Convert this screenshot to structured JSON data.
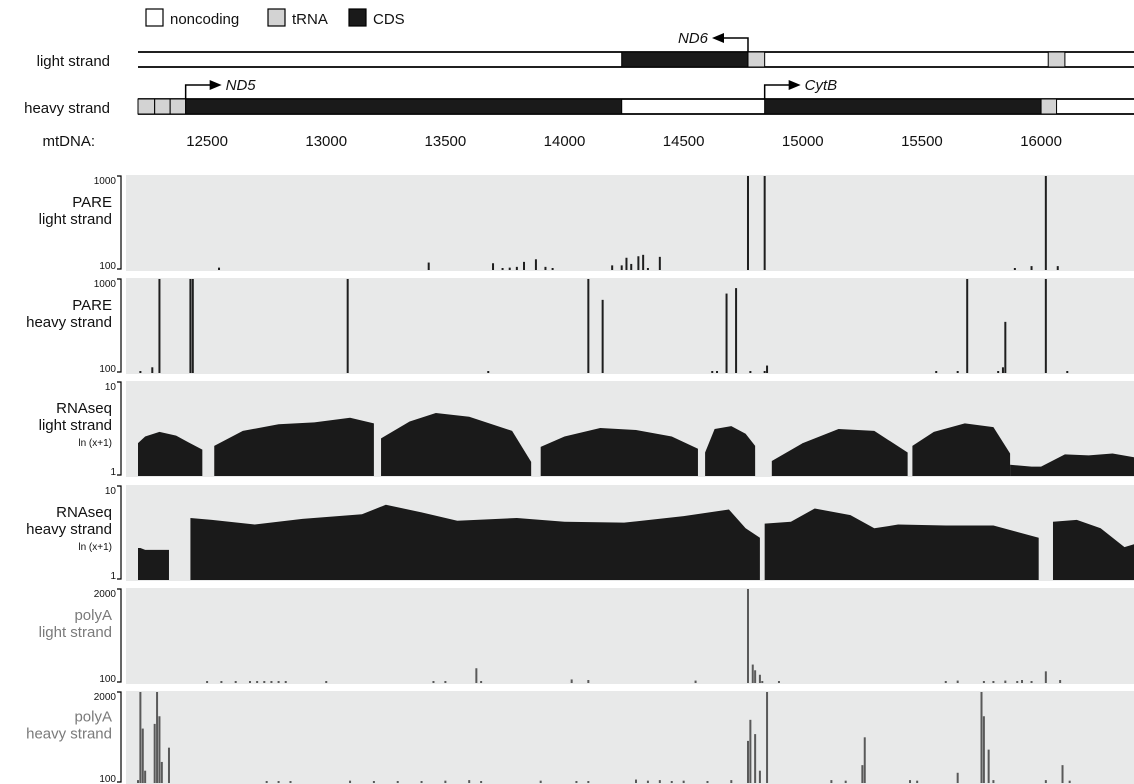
{
  "legend": [
    {
      "label": "noncoding",
      "color": "#ffffff"
    },
    {
      "label": "tRNA",
      "color": "#d3d3d3"
    },
    {
      "label": "CDS",
      "color": "#1a1a1a"
    }
  ],
  "colors": {
    "track_bg": "#e8e9e9",
    "dark_bar": "#1e1e1e",
    "gray_bar": "#595959",
    "gray_label": "#7a7a7a"
  },
  "genome": {
    "light_label": "light  strand",
    "heavy_label": "heavy strand",
    "axis_label": "mtDNA:",
    "ticks": [
      12500,
      13000,
      13500,
      14000,
      14500,
      15000,
      15500,
      16000
    ],
    "range": [
      12210,
      16390
    ],
    "light_features": [
      {
        "type": "CDS",
        "start": 14240,
        "end": 14770
      },
      {
        "type": "tRNA",
        "start": 14770,
        "end": 14840
      },
      {
        "type": "tRNA",
        "start": 16030,
        "end": 16100
      }
    ],
    "heavy_features": [
      {
        "type": "tRNA",
        "start": 12210,
        "end": 12280
      },
      {
        "type": "tRNA",
        "start": 12280,
        "end": 12345
      },
      {
        "type": "tRNA",
        "start": 12345,
        "end": 12410
      },
      {
        "type": "CDS",
        "start": 12410,
        "end": 14240
      },
      {
        "type": "CDS",
        "start": 14840,
        "end": 16000
      },
      {
        "type": "tRNA",
        "start": 16000,
        "end": 16065
      }
    ],
    "genes": [
      {
        "name": "ND6",
        "strand": "light",
        "start": 14770,
        "direction": "left"
      },
      {
        "name": "ND5",
        "strand": "heavy",
        "start": 12410,
        "direction": "right"
      },
      {
        "name": "CytB",
        "strand": "heavy",
        "start": 14840,
        "direction": "right"
      }
    ]
  },
  "chart_data": [
    {
      "type": "bar",
      "title_lines": [
        "PARE",
        "light strand"
      ],
      "scale": "log",
      "ylim": [
        100,
        1000
      ],
      "ytick_labels": [
        "1000",
        "100"
      ],
      "x": [
        12550,
        13430,
        13700,
        13740,
        13770,
        13800,
        13830,
        13880,
        13920,
        13950,
        14200,
        14240,
        14260,
        14280,
        14310,
        14330,
        14350,
        14400,
        14770,
        14840,
        15890,
        15960,
        16020,
        16070
      ],
      "values": [
        106,
        120,
        118,
        104,
        106,
        108,
        122,
        130,
        108,
        105,
        112,
        112,
        135,
        116,
        140,
        145,
        105,
        138,
        1000,
        1000,
        102,
        110,
        1000,
        110
      ]
    },
    {
      "type": "bar",
      "title_lines": [
        "PARE",
        "heavy strand"
      ],
      "scale": "log",
      "ylim": [
        100,
        1000
      ],
      "ytick_labels": [
        "1000",
        "100"
      ],
      "x": [
        12220,
        12270,
        12300,
        12430,
        12440,
        13090,
        13680,
        14100,
        14160,
        14620,
        14640,
        14680,
        14720,
        14780,
        14840,
        14850,
        15560,
        15650,
        15690,
        15820,
        15840,
        15850,
        16020,
        16110
      ],
      "values": [
        102,
        115,
        1000,
        1000,
        1000,
        1000,
        102,
        1000,
        600,
        101,
        102,
        700,
        800,
        102,
        102,
        120,
        103,
        102,
        1000,
        102,
        115,
        350,
        1000,
        102
      ]
    },
    {
      "type": "area",
      "title_lines": [
        "RNAseq",
        "light strand"
      ],
      "unit": "ln (x+1)",
      "ylim": [
        0,
        10
      ],
      "ytick_labels": [
        "10",
        "1"
      ],
      "segments": [
        {
          "x": [
            12210,
            12240,
            12300,
            12370,
            12420,
            12480
          ],
          "y": [
            3.5,
            4.2,
            4.7,
            4.3,
            3.6,
            2.8
          ]
        },
        {
          "x": [
            12530,
            12650,
            12800,
            12950,
            13100,
            13200
          ],
          "y": [
            3.2,
            4.8,
            5.5,
            5.7,
            6.2,
            5.6
          ]
        },
        {
          "x": [
            13230,
            13350,
            13460,
            13600,
            13780,
            13860
          ],
          "y": [
            4.0,
            5.8,
            6.7,
            6.3,
            4.8,
            1.5
          ]
        },
        {
          "x": [
            13900,
            14000,
            14150,
            14300,
            14450,
            14560
          ],
          "y": [
            3.1,
            4.2,
            5.1,
            4.9,
            4.2,
            2.9
          ]
        },
        {
          "x": [
            14590,
            14630,
            14700,
            14760,
            14800
          ],
          "y": [
            2.5,
            5.0,
            5.3,
            4.5,
            3.2
          ]
        },
        {
          "x": [
            14870,
            15000,
            15150,
            15300,
            15440
          ],
          "y": [
            1.6,
            3.5,
            5.0,
            4.8,
            2.5
          ]
        },
        {
          "x": [
            15460,
            15550,
            15680,
            15800,
            15870
          ],
          "y": [
            3.2,
            4.7,
            5.6,
            5.2,
            2.4
          ]
        },
        {
          "x": [
            15870,
            15960,
            16000,
            16100,
            16200,
            16300,
            16390
          ],
          "y": [
            1.2,
            1.0,
            1.0,
            2.3,
            2.2,
            2.4,
            2.0
          ]
        }
      ]
    },
    {
      "type": "area",
      "title_lines": [
        "RNAseq",
        "heavy strand"
      ],
      "unit": "ln (x+1)",
      "ylim": [
        0,
        10
      ],
      "ytick_labels": [
        "10",
        "1"
      ],
      "segments": [
        {
          "x": [
            12210,
            12220,
            12240,
            12280,
            12340
          ],
          "y": [
            3.4,
            3.4,
            3.2,
            3.2,
            3.2
          ]
        },
        {
          "x": [
            12430,
            12520,
            12700,
            12900,
            13150,
            13250,
            13400,
            13550,
            13800,
            14000,
            14250,
            14500,
            14690,
            14760,
            14820
          ],
          "y": [
            6.6,
            6.4,
            5.9,
            6.5,
            7.0,
            8.0,
            7.2,
            6.3,
            6.6,
            6.2,
            6.1,
            6.8,
            7.5,
            5.5,
            4.5
          ]
        },
        {
          "x": [
            14840,
            14950,
            15050,
            15200,
            15300,
            15400,
            15600,
            15800,
            15990
          ],
          "y": [
            6.0,
            6.2,
            7.6,
            6.9,
            5.5,
            5.9,
            5.8,
            5.8,
            4.5
          ]
        },
        {
          "x": [
            16050,
            16150,
            16250,
            16350,
            16390
          ],
          "y": [
            6.2,
            6.4,
            5.5,
            3.5,
            3.8
          ]
        }
      ]
    },
    {
      "type": "bar",
      "title_lines": [
        "polyA",
        "light strand"
      ],
      "scale": "log",
      "ylim": [
        100,
        2000
      ],
      "ytick_labels": [
        "2000",
        "100"
      ],
      "x": [
        12500,
        12560,
        12620,
        12680,
        12710,
        12740,
        12770,
        12800,
        12830,
        13000,
        13450,
        13500,
        13630,
        13650,
        14030,
        14100,
        14550,
        14770,
        14790,
        14800,
        14820,
        14830,
        14900,
        15600,
        15650,
        15760,
        15800,
        15850,
        15900,
        15920,
        15960,
        16020,
        16080
      ],
      "values": [
        106,
        104,
        103,
        102,
        103,
        102,
        104,
        101,
        103,
        102,
        102,
        105,
        160,
        104,
        112,
        110,
        108,
        2000,
        180,
        150,
        130,
        104,
        103,
        104,
        108,
        102,
        103,
        108,
        106,
        110,
        102,
        145,
        110
      ]
    },
    {
      "type": "bar",
      "title_lines": [
        "polyA",
        "heavy strand"
      ],
      "scale": "log",
      "ylim": [
        100,
        2000
      ],
      "ytick_labels": [
        "2000",
        "100"
      ],
      "x": [
        12210,
        12220,
        12230,
        12240,
        12280,
        12290,
        12300,
        12310,
        12340,
        12750,
        12800,
        12850,
        13100,
        13200,
        13300,
        13400,
        13500,
        13600,
        13650,
        13900,
        14050,
        14100,
        14300,
        14350,
        14400,
        14450,
        14500,
        14600,
        14700,
        14770,
        14780,
        14800,
        14820,
        14850,
        15120,
        15180,
        15250,
        15260,
        15450,
        15480,
        15650,
        15750,
        15760,
        15780,
        15800,
        16020,
        16090,
        16120
      ],
      "values": [
        110,
        2000,
        600,
        150,
        700,
        2000,
        900,
        200,
        320,
        102,
        104,
        103,
        108,
        105,
        104,
        106,
        108,
        110,
        104,
        108,
        106,
        104,
        112,
        108,
        110,
        106,
        108,
        104,
        110,
        400,
        800,
        500,
        150,
        2000,
        110,
        108,
        180,
        450,
        110,
        108,
        140,
        2000,
        900,
        300,
        110,
        110,
        180,
        108
      ]
    }
  ]
}
